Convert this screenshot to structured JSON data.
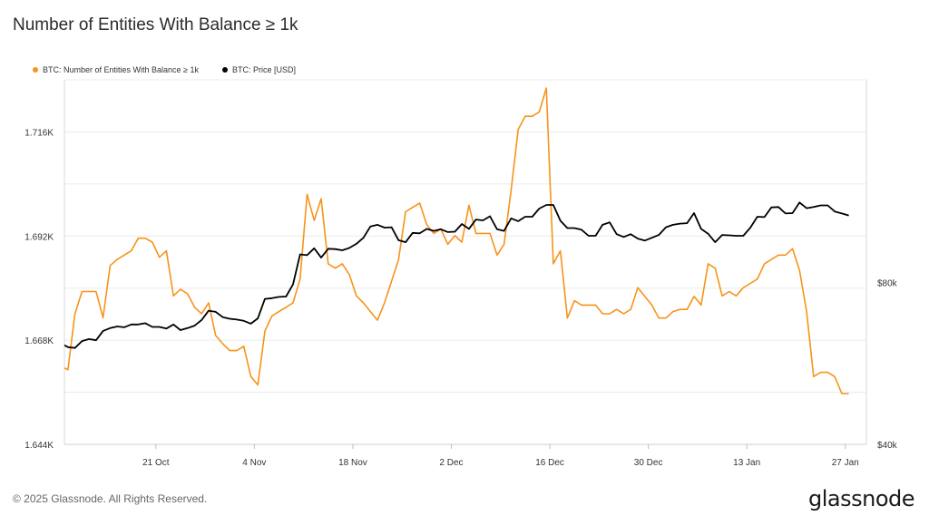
{
  "title": "Number of Entities With Balance ≥ 1k",
  "legend": [
    {
      "label": "BTC: Number of Entities With Balance ≥ 1k",
      "color": "#f7931a"
    },
    {
      "label": "BTC: Price [USD]",
      "color": "#000000"
    }
  ],
  "footer": "© 2025 Glassnode. All Rights Reserved.",
  "logo": "glassnode",
  "chart_data": {
    "type": "line",
    "x_tick_labels": [
      "21 Oct",
      "4 Nov",
      "18 Nov",
      "2 Dec",
      "16 Dec",
      "30 Dec",
      "13 Jan",
      "27 Jan"
    ],
    "x_range_days": [
      -13,
      101
    ],
    "x_tick_days": [
      0,
      14,
      28,
      42,
      56,
      70,
      84,
      98
    ],
    "left_axis": {
      "ticks": [
        1644,
        1668,
        1692,
        1716
      ],
      "tick_labels": [
        "1.644K",
        "1.668K",
        "1.692K",
        "1.716K"
      ],
      "range": [
        1644,
        1728
      ],
      "grid": true
    },
    "right_axis": {
      "ticks": [
        40000,
        80000
      ],
      "tick_labels": [
        "$40k",
        "$80k"
      ],
      "range": [
        40000,
        130000
      ]
    },
    "series": [
      {
        "name": "BTC: Number of Entities With Balance ≥ 1k",
        "color": "#f7931a",
        "axis": "left",
        "points": [
          [
            -13,
            1661.6
          ],
          [
            -12.5,
            1661.2
          ],
          [
            -11.5,
            1674.1
          ],
          [
            -10.5,
            1679.2
          ],
          [
            -9.5,
            1679.2
          ],
          [
            -8.5,
            1679.2
          ],
          [
            -7.5,
            1673.2
          ],
          [
            -6.5,
            1685.2
          ],
          [
            -5.5,
            1686.6
          ],
          [
            -4.5,
            1687.6
          ],
          [
            -3.5,
            1688.6
          ],
          [
            -2.5,
            1691.5
          ],
          [
            -1.5,
            1691.5
          ],
          [
            -0.5,
            1690.6
          ],
          [
            0.5,
            1687.1
          ],
          [
            1.5,
            1688.6
          ],
          [
            2.5,
            1678.2
          ],
          [
            3.5,
            1679.7
          ],
          [
            4.5,
            1678.7
          ],
          [
            5.5,
            1675.6
          ],
          [
            6.5,
            1674.1
          ],
          [
            7.5,
            1676.6
          ],
          [
            8.5,
            1669.1
          ],
          [
            9.5,
            1667.2
          ],
          [
            10.5,
            1665.6
          ],
          [
            11.5,
            1665.6
          ],
          [
            12.5,
            1666.6
          ],
          [
            13.5,
            1659.6
          ],
          [
            14.5,
            1657.7
          ],
          [
            15.5,
            1670.1
          ],
          [
            16.5,
            1673.6
          ],
          [
            17.5,
            1674.6
          ],
          [
            18.5,
            1675.6
          ],
          [
            19.5,
            1676.6
          ],
          [
            20.5,
            1682.1
          ],
          [
            21.5,
            1701.6
          ],
          [
            22.5,
            1695.6
          ],
          [
            23.5,
            1700.6
          ],
          [
            24.5,
            1685.6
          ],
          [
            25.5,
            1684.6
          ],
          [
            26.5,
            1685.6
          ],
          [
            27.5,
            1683.1
          ],
          [
            28.5,
            1678.2
          ],
          [
            29.5,
            1676.6
          ],
          [
            30.5,
            1674.6
          ],
          [
            31.5,
            1672.6
          ],
          [
            32.5,
            1676.6
          ],
          [
            33.5,
            1681.6
          ],
          [
            34.5,
            1686.6
          ],
          [
            35.5,
            1697.6
          ],
          [
            36.5,
            1698.6
          ],
          [
            37.5,
            1699.6
          ],
          [
            38.5,
            1694.6
          ],
          [
            39.5,
            1692.6
          ],
          [
            40.5,
            1693.6
          ],
          [
            41.5,
            1690.1
          ],
          [
            42.5,
            1692.1
          ],
          [
            43.5,
            1690.6
          ],
          [
            44.5,
            1699.1
          ],
          [
            45.5,
            1692.6
          ],
          [
            46.5,
            1692.6
          ],
          [
            47.5,
            1692.6
          ],
          [
            48.5,
            1687.6
          ],
          [
            49.5,
            1690.1
          ],
          [
            50.5,
            1702.6
          ],
          [
            51.5,
            1716.6
          ],
          [
            52.5,
            1719.6
          ],
          [
            53.5,
            1719.6
          ],
          [
            54.5,
            1720.6
          ],
          [
            55.5,
            1726.1
          ],
          [
            56.5,
            1685.6
          ],
          [
            57.5,
            1688.6
          ],
          [
            58.5,
            1673.1
          ],
          [
            59.5,
            1677.1
          ],
          [
            60.5,
            1676.1
          ],
          [
            61.5,
            1676.1
          ],
          [
            62.5,
            1676.1
          ],
          [
            63.5,
            1674.1
          ],
          [
            64.5,
            1674.1
          ],
          [
            65.5,
            1675.1
          ],
          [
            66.5,
            1674.1
          ],
          [
            67.5,
            1675.1
          ],
          [
            68.5,
            1680.1
          ],
          [
            69.5,
            1678.1
          ],
          [
            70.5,
            1676.1
          ],
          [
            71.5,
            1673.1
          ],
          [
            72.5,
            1673.1
          ],
          [
            73.5,
            1674.6
          ],
          [
            74.5,
            1675.1
          ],
          [
            75.5,
            1675.1
          ],
          [
            76.5,
            1678.1
          ],
          [
            77.5,
            1676.1
          ],
          [
            78.5,
            1685.6
          ],
          [
            79.5,
            1684.6
          ],
          [
            80.5,
            1678.2
          ],
          [
            81.5,
            1679.2
          ],
          [
            82.5,
            1678.2
          ],
          [
            83.5,
            1680.1
          ],
          [
            84.5,
            1681.1
          ],
          [
            85.5,
            1682.1
          ],
          [
            86.5,
            1685.6
          ],
          [
            87.5,
            1686.6
          ],
          [
            88.5,
            1687.6
          ],
          [
            89.5,
            1687.6
          ],
          [
            90.5,
            1689.1
          ],
          [
            91.5,
            1684.1
          ],
          [
            92.5,
            1674.6
          ],
          [
            93.5,
            1659.6
          ],
          [
            94.5,
            1660.6
          ],
          [
            95.5,
            1660.6
          ],
          [
            96.5,
            1659.6
          ],
          [
            97.5,
            1655.7
          ],
          [
            98.5,
            1655.7
          ]
        ]
      },
      {
        "name": "BTC: Price [USD]",
        "color": "#000000",
        "axis": "right",
        "points": [
          [
            -13,
            64500
          ],
          [
            -12.5,
            64000
          ],
          [
            -11.5,
            63800
          ],
          [
            -10.5,
            65500
          ],
          [
            -9.5,
            66000
          ],
          [
            -8.5,
            65700
          ],
          [
            -7.5,
            68000
          ],
          [
            -6.5,
            68700
          ],
          [
            -5.5,
            69100
          ],
          [
            -4.5,
            68900
          ],
          [
            -3.5,
            69600
          ],
          [
            -2.5,
            69600
          ],
          [
            -1.5,
            69900
          ],
          [
            -0.5,
            69000
          ],
          [
            0.5,
            69000
          ],
          [
            1.5,
            68600
          ],
          [
            2.5,
            69600
          ],
          [
            3.5,
            68200
          ],
          [
            4.5,
            68700
          ],
          [
            5.5,
            69300
          ],
          [
            6.5,
            70700
          ],
          [
            7.5,
            73000
          ],
          [
            8.5,
            72700
          ],
          [
            9.5,
            71400
          ],
          [
            10.5,
            71000
          ],
          [
            11.5,
            70800
          ],
          [
            12.5,
            70500
          ],
          [
            13.5,
            69800
          ],
          [
            14.5,
            71100
          ],
          [
            15.5,
            75900
          ],
          [
            16.5,
            76100
          ],
          [
            17.5,
            76400
          ],
          [
            18.5,
            76500
          ],
          [
            19.5,
            79500
          ],
          [
            20.5,
            86900
          ],
          [
            21.5,
            86700
          ],
          [
            22.5,
            88400
          ],
          [
            23.5,
            86100
          ],
          [
            24.5,
            88300
          ],
          [
            25.5,
            88200
          ],
          [
            26.5,
            87900
          ],
          [
            27.5,
            88500
          ],
          [
            28.5,
            89500
          ],
          [
            29.5,
            91000
          ],
          [
            30.5,
            93800
          ],
          [
            31.5,
            94200
          ],
          [
            32.5,
            93500
          ],
          [
            33.5,
            93600
          ],
          [
            34.5,
            90400
          ],
          [
            35.5,
            89900
          ],
          [
            36.5,
            92200
          ],
          [
            37.5,
            92100
          ],
          [
            38.5,
            93200
          ],
          [
            39.5,
            92700
          ],
          [
            40.5,
            93100
          ],
          [
            41.5,
            92400
          ],
          [
            42.5,
            92500
          ],
          [
            43.5,
            94400
          ],
          [
            44.5,
            93200
          ],
          [
            45.5,
            95500
          ],
          [
            46.5,
            95300
          ],
          [
            47.5,
            96300
          ],
          [
            48.5,
            93100
          ],
          [
            49.5,
            92700
          ],
          [
            50.5,
            95800
          ],
          [
            51.5,
            95100
          ],
          [
            52.5,
            96200
          ],
          [
            53.5,
            96200
          ],
          [
            54.5,
            98200
          ],
          [
            55.5,
            99100
          ],
          [
            56.5,
            99100
          ],
          [
            57.5,
            95200
          ],
          [
            58.5,
            93400
          ],
          [
            59.5,
            93400
          ],
          [
            60.5,
            93000
          ],
          [
            61.5,
            91500
          ],
          [
            62.5,
            91500
          ],
          [
            63.5,
            94200
          ],
          [
            64.5,
            94800
          ],
          [
            65.5,
            91900
          ],
          [
            66.5,
            91200
          ],
          [
            67.5,
            91900
          ],
          [
            68.5,
            90800
          ],
          [
            69.5,
            90300
          ],
          [
            70.5,
            91000
          ],
          [
            71.5,
            91700
          ],
          [
            72.5,
            93600
          ],
          [
            73.5,
            94200
          ],
          [
            74.5,
            94500
          ],
          [
            75.5,
            94600
          ],
          [
            76.5,
            97100
          ],
          [
            77.5,
            93200
          ],
          [
            78.5,
            92000
          ],
          [
            79.5,
            89900
          ],
          [
            80.5,
            91700
          ],
          [
            81.5,
            91600
          ],
          [
            82.5,
            91500
          ],
          [
            83.5,
            91500
          ],
          [
            84.5,
            93500
          ],
          [
            85.5,
            96200
          ],
          [
            86.5,
            96100
          ],
          [
            87.5,
            98500
          ],
          [
            88.5,
            98600
          ],
          [
            89.5,
            97000
          ],
          [
            90.5,
            97100
          ],
          [
            91.5,
            99700
          ],
          [
            92.5,
            98300
          ],
          [
            93.5,
            98600
          ],
          [
            94.5,
            99000
          ],
          [
            95.5,
            99000
          ],
          [
            96.5,
            97500
          ],
          [
            97.5,
            97000
          ],
          [
            98.5,
            96500
          ]
        ]
      }
    ]
  }
}
